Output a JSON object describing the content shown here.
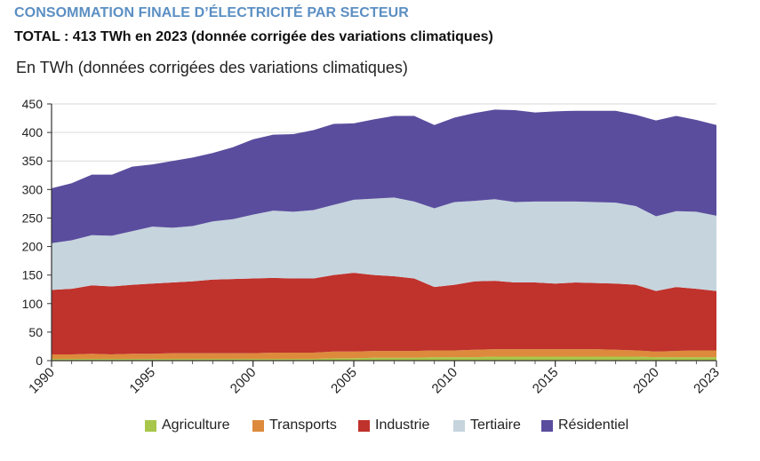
{
  "header": {
    "title": "CONSOMMATION FINALE D’ÉLECTRICITÉ PAR SECTEUR",
    "subtitle": "TOTAL : 413 TWh en 2023 (donnée corrigée des variations climatiques)",
    "unit": "En TWh (données corrigées des variations climatiques)"
  },
  "chart_data": {
    "type": "area",
    "stacked": true,
    "x": [
      1990,
      1991,
      1992,
      1993,
      1994,
      1995,
      1996,
      1997,
      1998,
      1999,
      2000,
      2001,
      2002,
      2003,
      2004,
      2005,
      2006,
      2007,
      2008,
      2009,
      2010,
      2011,
      2012,
      2013,
      2014,
      2015,
      2016,
      2017,
      2018,
      2019,
      2020,
      2021,
      2022,
      2023
    ],
    "x_ticks": [
      "1990",
      "1995",
      "2000",
      "2005",
      "2010",
      "2015",
      "2020",
      "2023"
    ],
    "y_ticks": [
      "0",
      "50",
      "100",
      "150",
      "200",
      "250",
      "300",
      "350",
      "400",
      "450"
    ],
    "ylim": [
      0,
      450
    ],
    "grid": "horizontal",
    "legend_position": "bottom",
    "series": [
      {
        "name": "Agriculture",
        "color": "#a8c64a",
        "values": [
          3,
          3,
          3,
          3,
          3,
          3,
          3,
          3,
          3,
          3,
          3,
          3,
          3,
          3,
          4,
          4,
          5,
          5,
          5,
          6,
          6,
          6,
          7,
          7,
          7,
          7,
          7,
          7,
          7,
          7,
          6,
          6,
          6,
          6
        ]
      },
      {
        "name": "Transports",
        "color": "#dd8a3c",
        "values": [
          8,
          8,
          9,
          8,
          9,
          9,
          10,
          10,
          10,
          10,
          10,
          11,
          11,
          11,
          12,
          12,
          12,
          12,
          12,
          12,
          12,
          13,
          13,
          13,
          13,
          13,
          13,
          13,
          12,
          11,
          10,
          11,
          12,
          12
        ]
      },
      {
        "name": "Industrie",
        "color": "#c0322c",
        "values": [
          113,
          115,
          120,
          119,
          121,
          123,
          124,
          126,
          129,
          130,
          131,
          131,
          130,
          130,
          134,
          138,
          133,
          131,
          127,
          111,
          115,
          120,
          120,
          117,
          117,
          115,
          117,
          116,
          116,
          115,
          106,
          112,
          108,
          104
        ]
      },
      {
        "name": "Tertiaire",
        "color": "#c6d4dd",
        "values": [
          82,
          85,
          88,
          89,
          94,
          100,
          96,
          97,
          102,
          105,
          112,
          118,
          117,
          120,
          123,
          128,
          134,
          138,
          135,
          138,
          145,
          141,
          143,
          141,
          142,
          144,
          142,
          142,
          142,
          138,
          131,
          133,
          135,
          132
        ]
      },
      {
        "name": "Résidentiel",
        "color": "#5a4d9e",
        "values": [
          96,
          100,
          106,
          107,
          113,
          109,
          117,
          120,
          120,
          126,
          132,
          133,
          136,
          140,
          142,
          134,
          139,
          143,
          150,
          146,
          148,
          154,
          157,
          161,
          156,
          158,
          159,
          160,
          161,
          160,
          168,
          167,
          161,
          159
        ]
      }
    ]
  }
}
